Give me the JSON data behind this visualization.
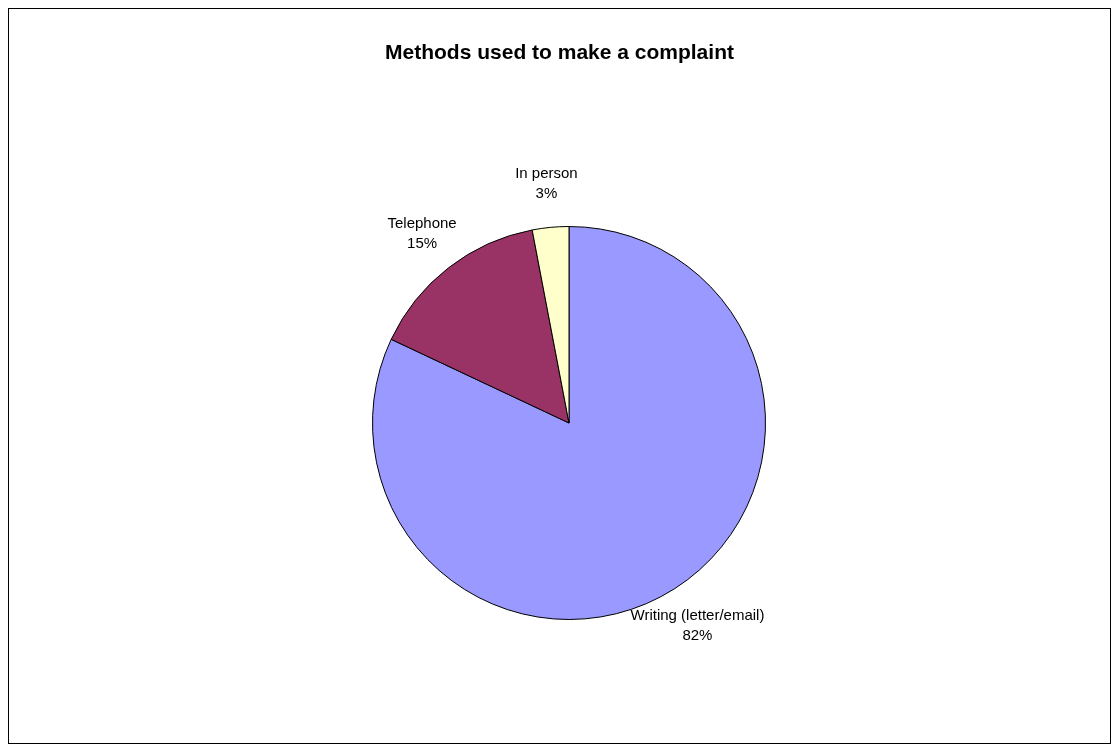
{
  "chart_data": {
    "type": "pie",
    "title": "Methods used to make a complaint",
    "categories": [
      "Writing (letter/email)",
      "Telephone",
      "In person"
    ],
    "values": [
      82,
      15,
      3
    ],
    "colors": [
      "#9999ff",
      "#993366",
      "#ffffcc"
    ],
    "value_labels": [
      "82%",
      "15%",
      "3%"
    ],
    "legend": false
  }
}
